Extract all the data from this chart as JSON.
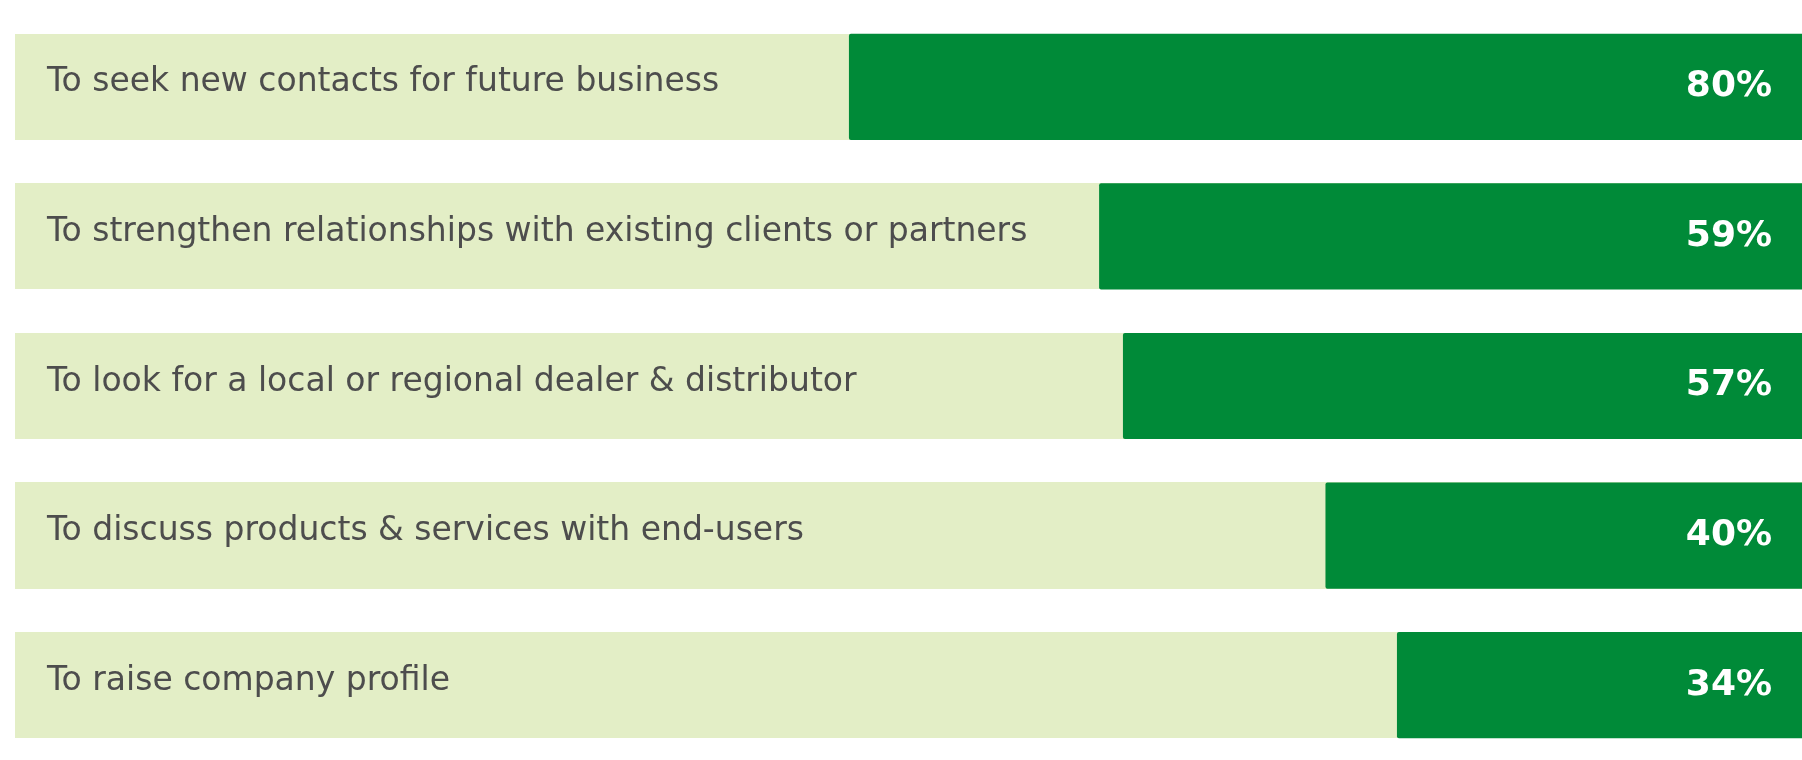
{
  "chart_data": {
    "type": "bar",
    "orientation": "horizontal",
    "categories": [
      "To seek new contacts for future business",
      "To strengthen relationships with existing clients or partners",
      "To look for a local or regional dealer & distributor",
      "To discuss products & services with end-users",
      "To raise company profile"
    ],
    "values": [
      80,
      59,
      57,
      40,
      34
    ],
    "value_labels": [
      "80%",
      "59%",
      "57%",
      "40%",
      "34%"
    ],
    "color": "#008a38",
    "xlim": [
      150,
      0
    ],
    "tick_labels": "y",
    "legend": false
  }
}
